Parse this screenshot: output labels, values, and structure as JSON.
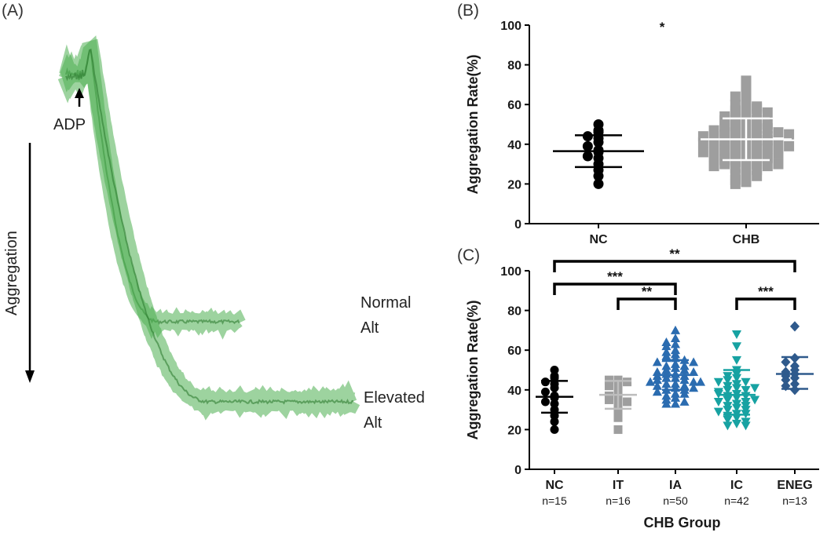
{
  "panel_a": {
    "label": "(A)",
    "adp_label": "ADP",
    "aggregation_label": "Aggregation",
    "normal_label": [
      "Normal",
      "Alt"
    ],
    "elevated_label": [
      "Elevated",
      "Alt"
    ],
    "trace_color": "#4caf50"
  },
  "panel_b": {
    "label": "(B)",
    "significance": "*"
  },
  "panel_c": {
    "label": "(C)",
    "n_labels": [
      "n=15",
      "n=16",
      "n=50",
      "n=42",
      "n=13"
    ],
    "brackets": [
      {
        "from": "NC",
        "to": "ENEG",
        "label": "**"
      },
      {
        "from": "NC",
        "to": "IA",
        "label": "***"
      },
      {
        "from": "IT",
        "to": "IA",
        "label": "**"
      },
      {
        "from": "IC",
        "to": "ENEG",
        "label": "***"
      }
    ]
  },
  "chart_data": [
    {
      "type": "scatter",
      "description_panel": "B",
      "ylabel": "Aggregation Rate(%)",
      "xlabel": "",
      "categories": [
        "NC",
        "CHB"
      ],
      "ylim": [
        0,
        100
      ],
      "yticks": [
        0,
        20,
        40,
        60,
        80,
        100
      ],
      "series": [
        {
          "category": "NC",
          "marker": "circle",
          "color": "#000000",
          "mean": 36.5,
          "sd_low": 28.5,
          "sd_high": 44.5,
          "points": [
            50,
            47,
            46,
            44,
            43,
            41,
            39,
            37,
            36,
            34,
            33,
            30,
            27,
            24,
            20
          ]
        },
        {
          "category": "CHB",
          "marker": "square",
          "color": "#9e9e9e",
          "mean": 42.5,
          "sd_low": 32,
          "sd_high": 53,
          "points": [
            72,
            70,
            68,
            66,
            64,
            62,
            61,
            60,
            59,
            58,
            57,
            56,
            55,
            55,
            54,
            53,
            53,
            52,
            51,
            50,
            50,
            49,
            48,
            48,
            47,
            47,
            46,
            46,
            45,
            45,
            44,
            44,
            43,
            43,
            42,
            42,
            41,
            41,
            40,
            40,
            39,
            39,
            38,
            38,
            37,
            37,
            36,
            36,
            35,
            35,
            34,
            34,
            33,
            33,
            32,
            32,
            31,
            31,
            30,
            30,
            29,
            29,
            28,
            28,
            27,
            26,
            25,
            24,
            23,
            22,
            21,
            20,
            58,
            52,
            46,
            40,
            35,
            30,
            44,
            38,
            50,
            42,
            36,
            48,
            33,
            56,
            41,
            45,
            39,
            47
          ]
        }
      ]
    },
    {
      "type": "scatter",
      "description_panel": "C",
      "ylabel": "Aggregation Rate(%)",
      "xlabel": "CHB Group",
      "categories": [
        "NC",
        "IT",
        "IA",
        "IC",
        "ENEG"
      ],
      "ylim": [
        0,
        100
      ],
      "yticks": [
        0,
        20,
        40,
        60,
        80,
        100
      ],
      "series": [
        {
          "category": "NC",
          "marker": "circle",
          "color": "#000000",
          "mean": 36.5,
          "sd_low": 28.5,
          "sd_high": 44.5,
          "points": [
            50,
            47,
            46,
            44,
            43,
            41,
            39,
            37,
            36,
            34,
            33,
            30,
            27,
            24,
            20
          ]
        },
        {
          "category": "IT",
          "marker": "square",
          "color": "#9e9e9e",
          "mean": 37.5,
          "sd_low": 30.5,
          "sd_high": 44.5,
          "points": [
            45,
            45,
            44,
            43,
            42,
            40,
            38,
            37,
            36,
            35,
            34,
            32,
            30,
            28,
            26,
            20
          ]
        },
        {
          "category": "IA",
          "marker": "triangle-up",
          "color": "#2b6cb0",
          "mean": 47.5,
          "sd_low": 40,
          "sd_high": 55,
          "points": [
            70,
            66,
            64,
            63,
            62,
            60,
            59,
            58,
            57,
            56,
            56,
            55,
            54,
            54,
            53,
            52,
            52,
            51,
            50,
            50,
            49,
            49,
            48,
            48,
            47,
            47,
            46,
            46,
            45,
            45,
            44,
            44,
            43,
            43,
            42,
            42,
            41,
            40,
            40,
            39,
            38,
            37,
            36,
            35,
            34,
            33,
            33,
            38,
            41,
            44
          ]
        },
        {
          "category": "IC",
          "marker": "triangle-down",
          "color": "#17a2a2",
          "mean": 37.5,
          "sd_low": 27.5,
          "sd_high": 50,
          "points": [
            68,
            62,
            55,
            50,
            48,
            47,
            46,
            45,
            44,
            43,
            42,
            41,
            40,
            40,
            39,
            38,
            37,
            37,
            36,
            35,
            34,
            34,
            33,
            32,
            31,
            30,
            30,
            29,
            28,
            27,
            26,
            25,
            24,
            23,
            22,
            22,
            35,
            38,
            32,
            28,
            44,
            41
          ]
        },
        {
          "category": "ENEG",
          "marker": "diamond",
          "color": "#2f5a8c",
          "mean": 48,
          "sd_low": 40.5,
          "sd_high": 56.5,
          "points": [
            72,
            56,
            54,
            52,
            50,
            49,
            48,
            47,
            46,
            45,
            43,
            42,
            40
          ]
        }
      ]
    }
  ]
}
